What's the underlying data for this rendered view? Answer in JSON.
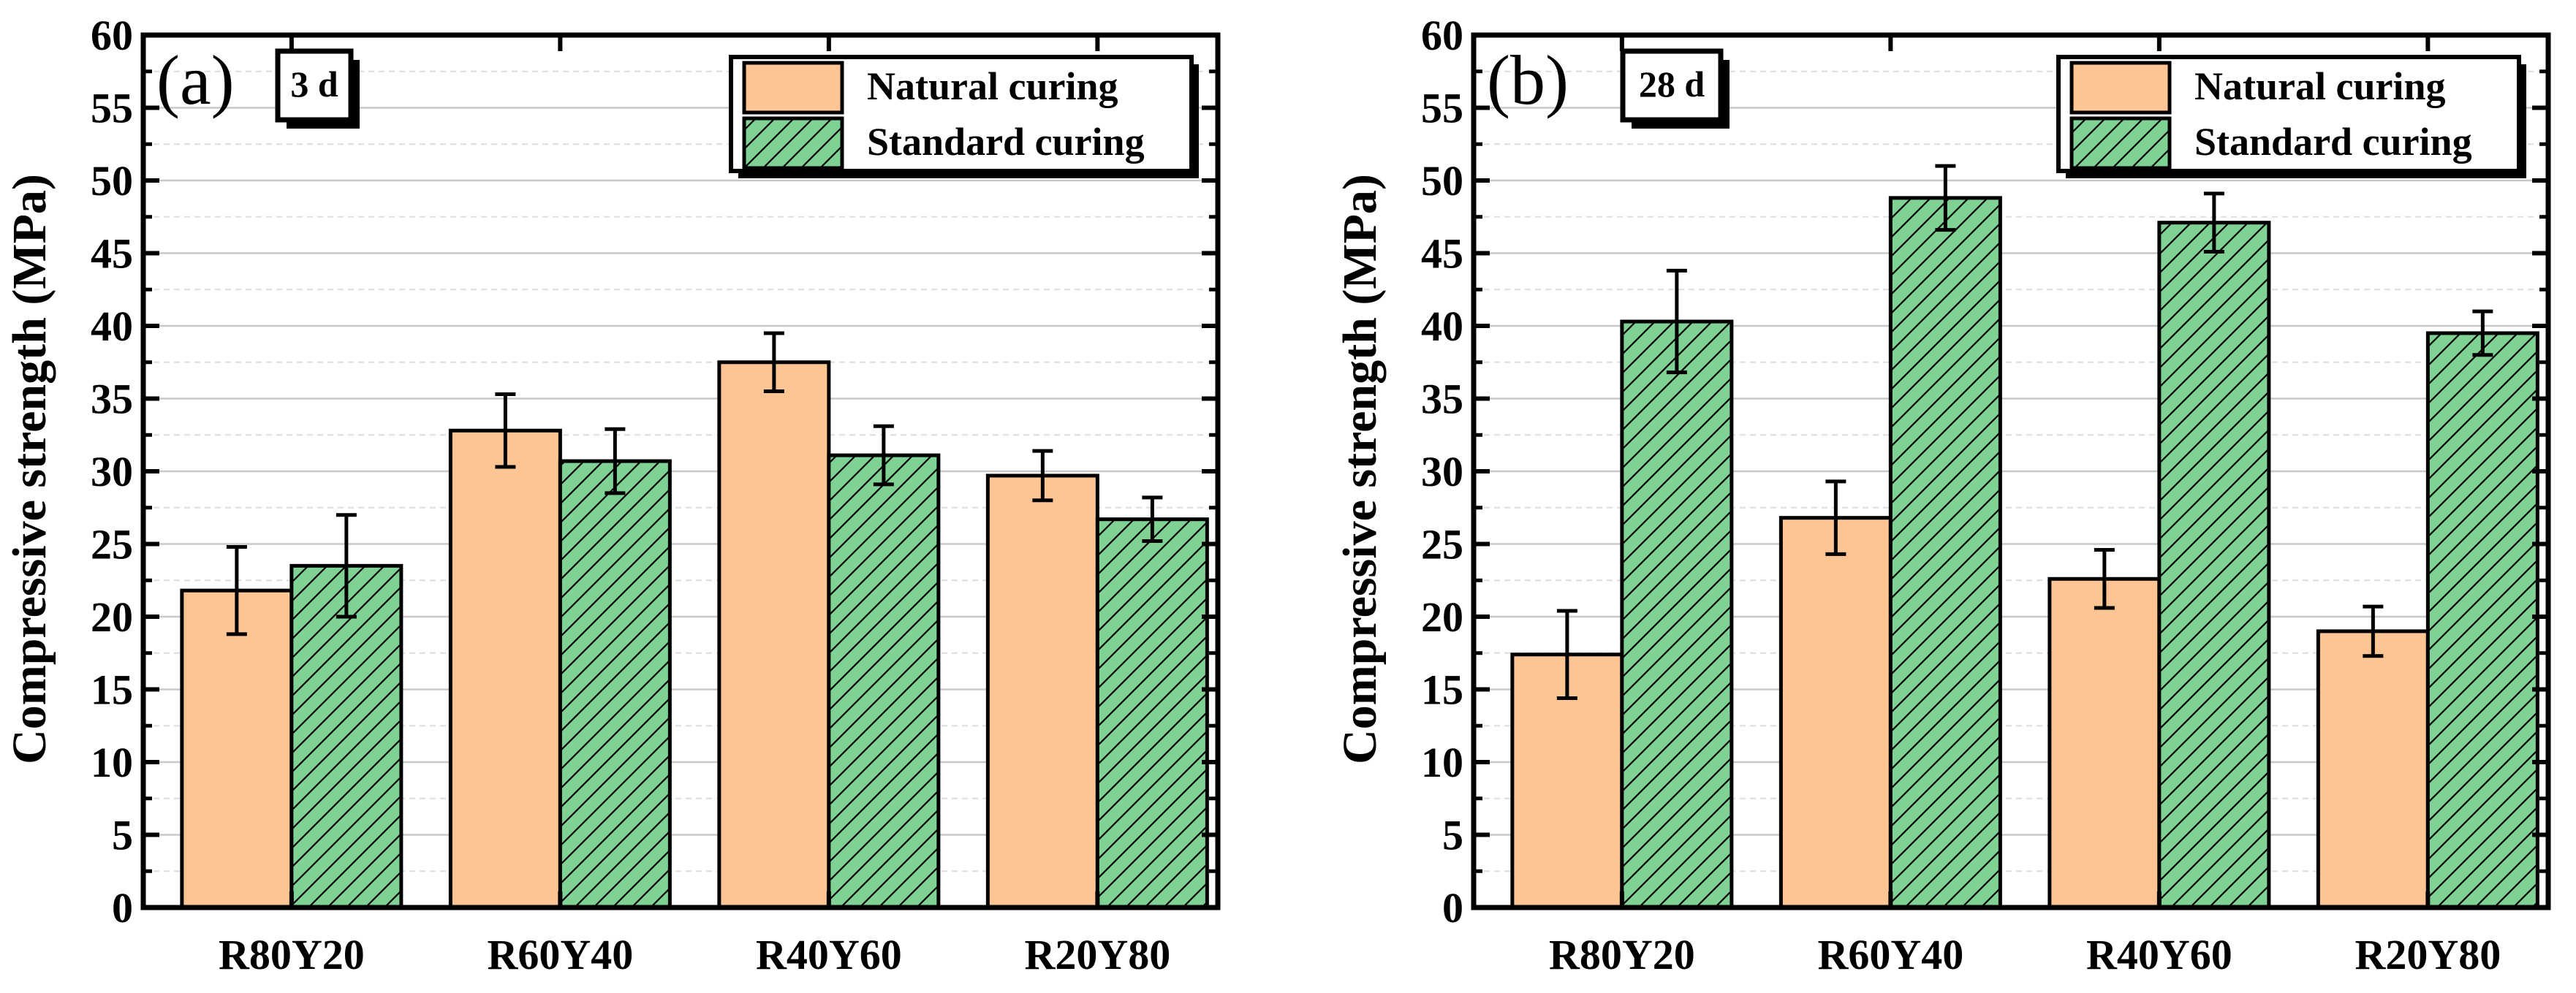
{
  "chart_data": [
    {
      "type": "bar",
      "panel_label": "(a)",
      "age_label": "3 d",
      "ylabel": "Compressive strength (MPa)",
      "xlabel": "",
      "ylim": [
        0,
        60
      ],
      "yticks": [
        "0",
        "5",
        "10",
        "15",
        "20",
        "25",
        "30",
        "35",
        "40",
        "45",
        "50",
        "55",
        "60"
      ],
      "categories": [
        "R80Y20",
        "R60Y40",
        "R40Y60",
        "R20Y80"
      ],
      "grid": "horizontal dashed",
      "legend_position": "top-right",
      "series": [
        {
          "name": "Natural curing",
          "color": "#FCC593",
          "pattern": "solid",
          "values": [
            21.8,
            32.8,
            37.5,
            29.7
          ],
          "errors": [
            3.0,
            2.5,
            2.0,
            1.7
          ]
        },
        {
          "name": "Standard curing",
          "color": "#7FD293",
          "pattern": "hatched",
          "values": [
            23.5,
            30.7,
            31.1,
            26.7
          ],
          "errors": [
            3.5,
            2.2,
            2.0,
            1.5
          ]
        }
      ]
    },
    {
      "type": "bar",
      "panel_label": "(b)",
      "age_label": "28 d",
      "ylabel": "Compressive strength (MPa)",
      "xlabel": "",
      "ylim": [
        0,
        60
      ],
      "yticks": [
        "0",
        "5",
        "10",
        "15",
        "20",
        "25",
        "30",
        "35",
        "40",
        "45",
        "50",
        "55",
        "60"
      ],
      "categories": [
        "R80Y20",
        "R60Y40",
        "R40Y60",
        "R20Y80"
      ],
      "grid": "horizontal dashed",
      "legend_position": "top-right",
      "series": [
        {
          "name": "Natural curing",
          "color": "#FCC593",
          "pattern": "solid",
          "values": [
            17.4,
            26.8,
            22.6,
            19.0
          ],
          "errors": [
            3.0,
            2.5,
            2.0,
            1.7
          ]
        },
        {
          "name": "Standard curing",
          "color": "#7FD293",
          "pattern": "hatched",
          "values": [
            40.3,
            48.8,
            47.1,
            39.5
          ],
          "errors": [
            3.5,
            2.2,
            2.0,
            1.5
          ]
        }
      ]
    }
  ]
}
